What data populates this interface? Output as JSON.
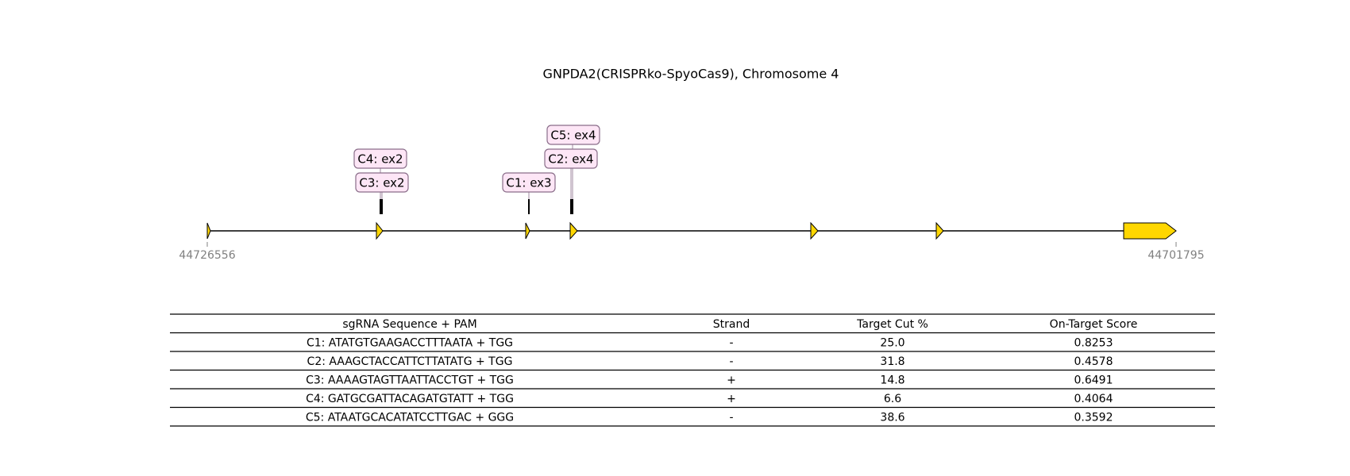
{
  "title": "GNPDA2(CRISPRko-SpyoCas9), Chromosome 4",
  "track": {
    "start": 44726556,
    "end": 44701795
  },
  "annotations": [
    "C4: ex2",
    "C3: ex2",
    "C1: ex3",
    "C5: ex4",
    "C2: ex4"
  ],
  "table": {
    "header": [
      "sgRNA Sequence + PAM",
      "Strand",
      "Target Cut %",
      "On-Target Score"
    ],
    "rows": [
      [
        "C1: ATATGTGAAGACCTTTAATA + TGG",
        "-",
        "25.0",
        "0.8253"
      ],
      [
        "C2: AAAGCTACCATTCTTATATG + TGG",
        "-",
        "31.8",
        "0.4578"
      ],
      [
        "C3: AAAAGTAGTTAATTACCTGT + TGG",
        "+",
        "14.8",
        "0.6491"
      ],
      [
        "C4: GATGCGATTACAGATGTATT + TGG",
        "+",
        "6.6",
        "0.4064"
      ],
      [
        "C5: ATAATGCACATATCCTTGAC + GGG",
        "-",
        "38.6",
        "0.3592"
      ]
    ]
  }
}
